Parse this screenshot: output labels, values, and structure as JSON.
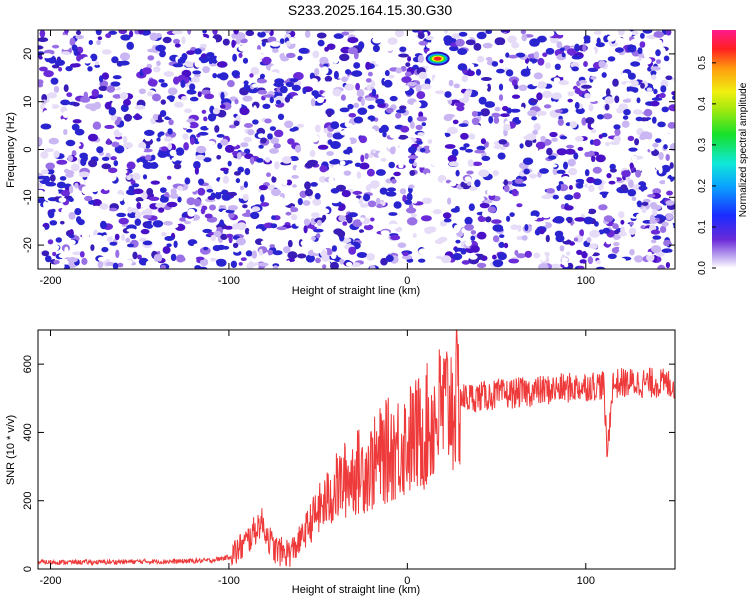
{
  "title": "S233.2025.164.15.30.G30",
  "colors": {
    "snr_line": "#ee3a3a",
    "spectrogram_main": "#5a1ad0",
    "spectrogram_light": "#c8b8f0"
  },
  "chart_data": [
    {
      "type": "heatmap",
      "xlabel": "Height of straight line (km)",
      "ylabel": "Frequency (Hz)",
      "xlim": [
        -207,
        150
      ],
      "ylim": [
        -25,
        25
      ],
      "x_ticks": [
        -200,
        -100,
        0,
        100
      ],
      "x_tick_labels": [
        "-200",
        "-100",
        "0",
        "100"
      ],
      "y_ticks": [
        20,
        10,
        0,
        -10,
        -20
      ],
      "y_tick_labels": [
        "20",
        "10",
        "0",
        "-10",
        "-20"
      ],
      "colorbar": {
        "label": "Normalized spectral amplitude",
        "range": [
          0,
          0.58
        ],
        "ticks": [
          0.0,
          0.1,
          0.2,
          0.3,
          0.4,
          0.5
        ],
        "tick_labels": [
          "0.0",
          "0.1",
          "0.2",
          "0.3",
          "0.4",
          "0.5"
        ],
        "colormap": "rainbow (white-purple-blue-cyan-green-yellow-red-magenta)"
      },
      "features": [
        {
          "description": "strong peak",
          "x": 17,
          "y": 19,
          "amplitude": 0.58
        },
        {
          "description": "low-amplitude vertical band",
          "x_range": [
            12,
            22
          ]
        }
      ]
    },
    {
      "type": "line",
      "xlabel": "Height of straight line (km)",
      "ylabel": "SNR (10 * v/v)",
      "xlim": [
        -207,
        150
      ],
      "ylim": [
        0,
        700
      ],
      "x_ticks": [
        -200,
        -100,
        0,
        100
      ],
      "x_tick_labels": [
        "-200",
        "-100",
        "0",
        "100"
      ],
      "y_ticks": [
        0,
        200,
        400,
        600
      ],
      "y_tick_labels": [
        "0",
        "200",
        "400",
        "600"
      ],
      "series": [
        {
          "x": [
            -207,
            -190,
            -170,
            -150,
            -130,
            -110,
            -100,
            -95,
            -90,
            -85,
            -82,
            -78,
            -75,
            -70,
            -65,
            -60,
            -55,
            -50,
            -45,
            -40,
            -35,
            -30,
            -25,
            -20,
            -15,
            -10,
            -5,
            0,
            5,
            10,
            15,
            20,
            25,
            30,
            40,
            50,
            60,
            70,
            80,
            90,
            100,
            110,
            112,
            115,
            120,
            130,
            140,
            150
          ],
          "y": [
            20,
            20,
            20,
            22,
            22,
            25,
            35,
            55,
            80,
            115,
            140,
            95,
            60,
            48,
            50,
            85,
            130,
            170,
            200,
            235,
            260,
            280,
            290,
            300,
            330,
            350,
            360,
            375,
            390,
            410,
            440,
            470,
            490,
            500,
            505,
            510,
            515,
            520,
            525,
            530,
            535,
            540,
            330,
            540,
            545,
            545,
            545,
            540
          ]
        }
      ]
    }
  ]
}
